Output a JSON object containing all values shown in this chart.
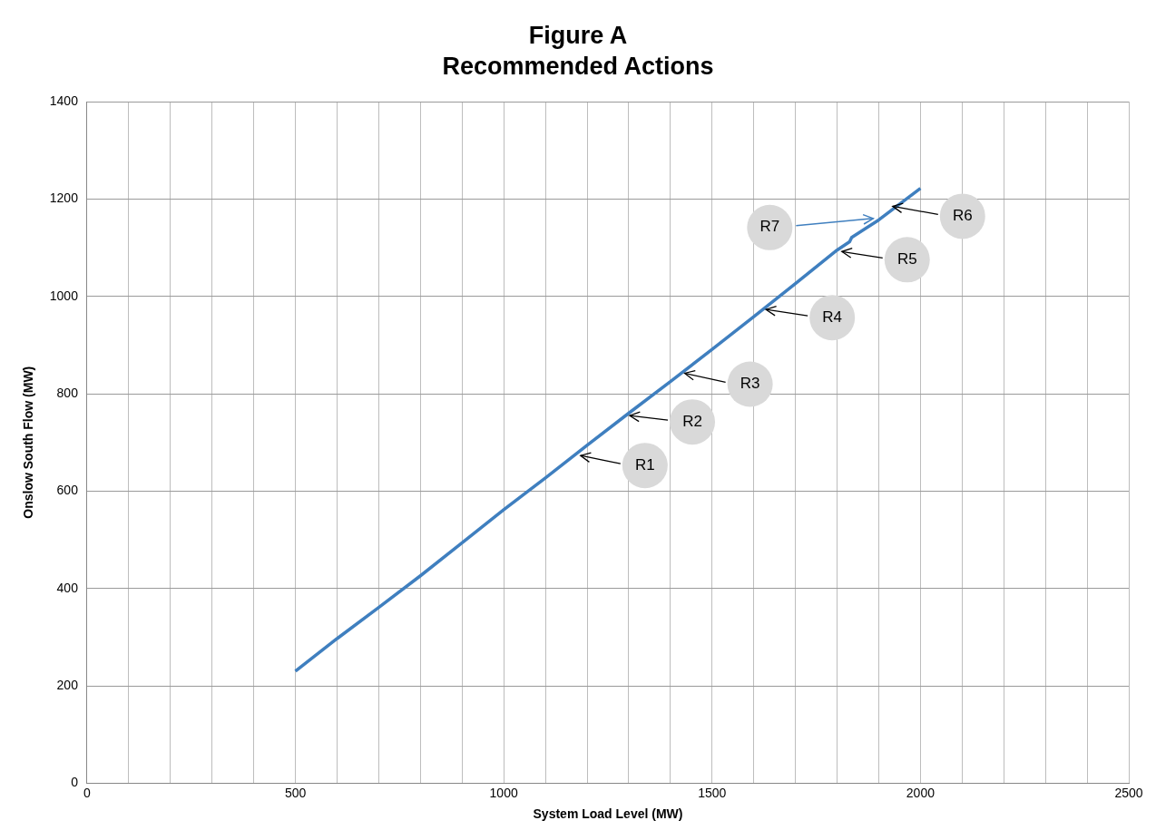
{
  "chart_data": {
    "type": "line",
    "title": "Figure A",
    "subtitle": "Recommended Actions",
    "xlabel": "System Load Level (MW)",
    "ylabel": "Onslow South Flow (MW)",
    "series": [
      {
        "color": "#3f7fbf",
        "x": [
          500,
          600,
          700,
          800,
          900,
          1000,
          1100,
          1200,
          1300,
          1400,
          1500,
          1600,
          1700,
          1800,
          1830,
          1835,
          1900,
          2000
        ],
        "values": [
          230,
          297,
          361,
          426,
          494,
          562,
          627,
          694,
          760,
          825,
          891,
          958,
          1026,
          1095,
          1112,
          1121,
          1157,
          1222
        ]
      }
    ],
    "xlim": [
      0,
      2500
    ],
    "xticks": [
      0,
      {
        "value": 100,
        "label": null
      },
      {
        "value": 200,
        "label": null
      },
      {
        "value": 300,
        "label": null
      },
      {
        "value": 400,
        "label": null
      },
      500,
      {
        "value": 600,
        "label": null
      },
      {
        "value": 700,
        "label": null
      },
      {
        "value": 800,
        "label": null
      },
      {
        "value": 900,
        "label": null
      },
      1000,
      {
        "value": 1100,
        "label": null
      },
      {
        "value": 1200,
        "label": null
      },
      {
        "value": 1300,
        "label": null
      },
      {
        "value": 1400,
        "label": null
      },
      1500,
      {
        "value": 1600,
        "label": null
      },
      {
        "value": 1700,
        "label": null
      },
      {
        "value": 1800,
        "label": null
      },
      {
        "value": 1900,
        "label": null
      },
      2000,
      {
        "value": 2100,
        "label": null
      },
      {
        "value": 2200,
        "label": null
      },
      {
        "value": 2300,
        "label": null
      },
      {
        "value": 2400,
        "label": null
      },
      2500
    ],
    "ylim": [
      0,
      1400
    ],
    "yticks": [
      0,
      200,
      400,
      600,
      800,
      1000,
      1200,
      1400
    ],
    "grid": true,
    "legend": false,
    "marker": "none",
    "line_style": "solid",
    "annotations": [
      {
        "text": "R1",
        "x": 1180,
        "y": 673
      },
      {
        "text": "R2",
        "x": 1298,
        "y": 755
      },
      {
        "text": "R3",
        "x": 1430,
        "y": 842
      },
      {
        "text": "R4",
        "x": 1625,
        "y": 973
      },
      {
        "text": "R5",
        "x": 1807,
        "y": 1092
      },
      {
        "text": "R6",
        "x": 1929,
        "y": 1185
      },
      {
        "text": "R7",
        "x": 1891,
        "y": 1160
      }
    ]
  }
}
